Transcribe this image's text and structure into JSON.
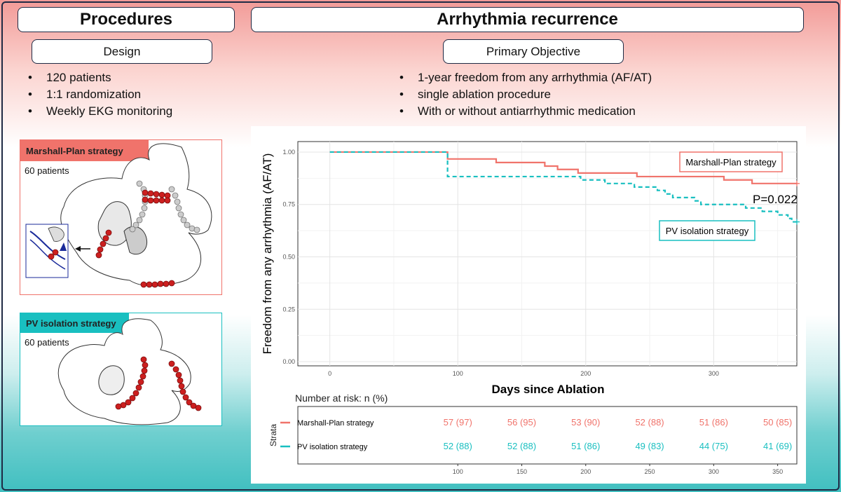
{
  "procedures": {
    "title": "Procedures",
    "design_label": "Design",
    "bullets": [
      "120 patients",
      "1:1 randomization",
      "Weekly EKG monitoring"
    ],
    "marshall": {
      "label": "Marshall-Plan strategy",
      "patients": "60 patients"
    },
    "pvi": {
      "label": "PV isolation strategy",
      "patients": "60 patients"
    }
  },
  "outcome": {
    "title": "Arrhythmia recurrence",
    "objective_label": "Primary Objective",
    "bullets": [
      "1-year freedom from any arrhythmia (AF/AT)",
      "single ablation procedure",
      "With or without antiarrhythmic medication"
    ]
  },
  "colors": {
    "marshall": "#f0736b",
    "pvi": "#19bfc0",
    "frame": "#1f2a44"
  },
  "chart_data": {
    "type": "line",
    "title": "",
    "xlabel": "Days since Ablation",
    "ylabel": "Freedom from any arrhythmia (AF/AT)",
    "xlim": [
      -25,
      365
    ],
    "ylim": [
      -0.02,
      1.05
    ],
    "x_ticks": [
      0,
      100,
      200,
      300
    ],
    "x_tick_labels": [
      "0",
      "100",
      "200",
      "300"
    ],
    "y_ticks": [
      0,
      0.25,
      0.5,
      0.75,
      1.0
    ],
    "y_tick_labels": [
      "0.00",
      "0.25",
      "0.50",
      "0.75",
      "1.00"
    ],
    "series": [
      {
        "name": "Marshall-Plan strategy",
        "steps": [
          [
            0,
            1.0
          ],
          [
            92,
            0.967
          ],
          [
            130,
            0.95
          ],
          [
            168,
            0.933
          ],
          [
            178,
            0.917
          ],
          [
            194,
            0.9
          ],
          [
            240,
            0.883
          ],
          [
            308,
            0.867
          ],
          [
            330,
            0.85
          ],
          [
            365,
            0.85
          ]
        ]
      },
      {
        "name": "PV isolation strategy",
        "steps": [
          [
            0,
            1.0
          ],
          [
            92,
            0.883
          ],
          [
            196,
            0.867
          ],
          [
            215,
            0.85
          ],
          [
            238,
            0.833
          ],
          [
            256,
            0.817
          ],
          [
            262,
            0.8
          ],
          [
            268,
            0.783
          ],
          [
            285,
            0.767
          ],
          [
            290,
            0.75
          ],
          [
            325,
            0.733
          ],
          [
            338,
            0.717
          ],
          [
            350,
            0.7
          ],
          [
            358,
            0.683
          ],
          [
            361,
            0.667
          ],
          [
            365,
            0.667
          ]
        ]
      }
    ],
    "legend": [
      "Marshall-Plan strategy",
      "PV isolation strategy"
    ],
    "annotation": "P=0.022",
    "risk_table": {
      "title": "Number at risk: n (%)",
      "strata_label": "Strata",
      "x": [
        100,
        150,
        200,
        250,
        300,
        350
      ],
      "x_tick_labels": [
        "100",
        "150",
        "200",
        "250",
        "300",
        "350"
      ],
      "rows": [
        {
          "name": "Marshall-Plan strategy",
          "values": [
            "57 (97)",
            "56 (95)",
            "53 (90)",
            "52 (88)",
            "51 (86)",
            "50 (85)"
          ]
        },
        {
          "name": "PV isolation strategy",
          "values": [
            "52 (88)",
            "52 (88)",
            "51 (86)",
            "49 (83)",
            "44 (75)",
            "41 (69)"
          ]
        }
      ]
    }
  }
}
